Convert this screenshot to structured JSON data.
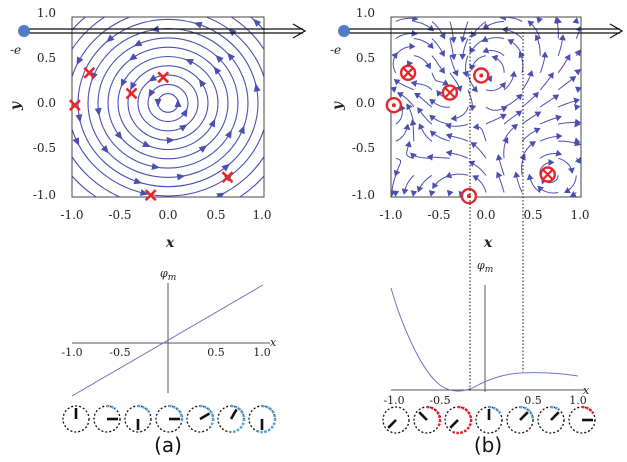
{
  "electron_label": "-e",
  "panel_labels": [
    "(a)",
    "(b)"
  ],
  "axis_labels": {
    "x": "x",
    "y": "y",
    "phi": "φ",
    "phi_sub": "m"
  },
  "stream_ticks": {
    "x": [
      "-1.0",
      "-0.5",
      "0.0",
      "0.5",
      "1.0"
    ],
    "y": [
      "1.0",
      "0.5",
      "0.0",
      "-0.5",
      "-1.0"
    ]
  },
  "phase_ticks_a": [
    "-1.0",
    "-0.5",
    "0.5",
    "1.0"
  ],
  "phase_ticks_b": [
    "-1.0",
    "-0.5",
    "0.5",
    "1.0"
  ],
  "colors": {
    "stream": "#4b4fb2",
    "marker": "#e8262a",
    "phase_curve": "#6f73c4",
    "electron": "#4f7fc2",
    "arc_blue": "#5aa5d6",
    "arc_red": "#e8262a"
  },
  "panel_a": {
    "markers": [
      {
        "x": -0.97,
        "y": 0.02
      },
      {
        "x": -0.82,
        "y": 0.38
      },
      {
        "x": -0.38,
        "y": 0.15
      },
      {
        "x": -0.05,
        "y": 0.33
      },
      {
        "x": -0.18,
        "y": -0.98
      },
      {
        "x": 0.62,
        "y": -0.78
      }
    ]
  },
  "panel_b": {
    "markers": [
      {
        "x": -0.97,
        "y": 0.02,
        "kind": "dot"
      },
      {
        "x": -0.82,
        "y": 0.38,
        "kind": "cross"
      },
      {
        "x": -0.38,
        "y": 0.16,
        "kind": "cross"
      },
      {
        "x": -0.05,
        "y": 0.35,
        "kind": "dot"
      },
      {
        "x": -0.18,
        "y": -0.99,
        "kind": "dot"
      },
      {
        "x": 0.65,
        "y": -0.75,
        "kind": "cross"
      }
    ],
    "dotted_x": [
      -0.18,
      0.42
    ]
  },
  "dials_a": [
    {
      "angle": 0,
      "arc": 0
    },
    {
      "angle": 90,
      "arc": 40
    },
    {
      "angle": 180,
      "arc": 60
    },
    {
      "angle": 90,
      "arc": 100
    },
    {
      "angle": 60,
      "arc": 130
    },
    {
      "angle": 30,
      "arc": 170
    },
    {
      "angle": 180,
      "arc": 200
    }
  ],
  "dials_b": [
    {
      "angle": 225,
      "arc": 0,
      "color": "blue"
    },
    {
      "angle": 315,
      "arc": 120,
      "color": "red"
    },
    {
      "angle": 225,
      "arc": 200,
      "color": "red"
    },
    {
      "angle": 0,
      "arc": 60,
      "color": "blue"
    },
    {
      "angle": 45,
      "arc": 90,
      "color": "blue"
    },
    {
      "angle": 45,
      "arc": 40,
      "color": "blue"
    },
    {
      "angle": 90,
      "arc": 60,
      "color": "red"
    }
  ]
}
